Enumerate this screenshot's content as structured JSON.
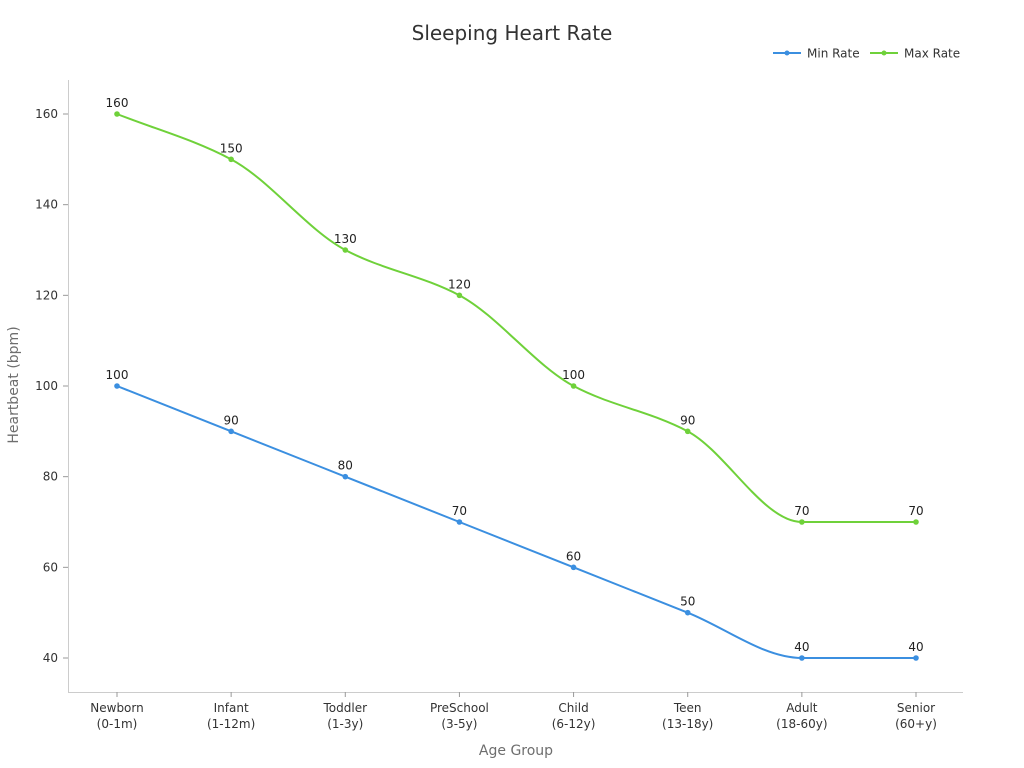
{
  "chart_data": {
    "type": "line",
    "title": "Sleeping Heart Rate",
    "xlabel": "Age Group",
    "ylabel": "Heartbeat (bpm)",
    "categories": [
      [
        "Newborn",
        "(0-1m)"
      ],
      [
        "Infant",
        "(1-12m)"
      ],
      [
        "Toddler",
        "(1-3y)"
      ],
      [
        "PreSchool",
        "(3-5y)"
      ],
      [
        "Child",
        "(6-12y)"
      ],
      [
        "Teen",
        "(13-18y)"
      ],
      [
        "Adult",
        "(18-60y)"
      ],
      [
        "Senior",
        "(60+y)"
      ]
    ],
    "yticks": [
      40,
      60,
      80,
      100,
      120,
      140,
      160
    ],
    "ylim": [
      32.5,
      167.5
    ],
    "grid": false,
    "legend_position": "top-right",
    "series": [
      {
        "name": "Min Rate",
        "color": "#3b8fe0",
        "values": [
          100,
          90,
          80,
          70,
          60,
          50,
          40,
          40
        ]
      },
      {
        "name": "Max Rate",
        "color": "#6fd13a",
        "values": [
          160,
          150,
          130,
          120,
          100,
          90,
          70,
          70
        ]
      }
    ]
  }
}
